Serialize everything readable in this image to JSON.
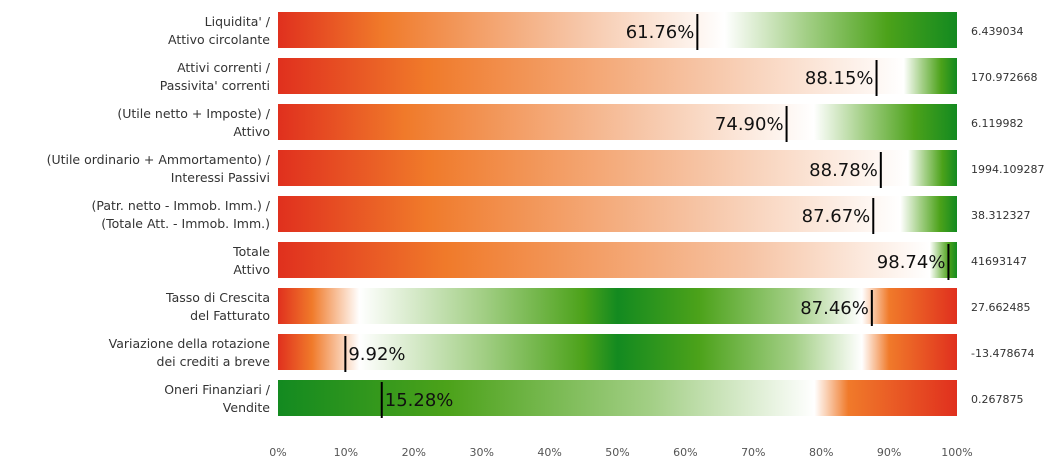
{
  "chart_data": {
    "type": "bar",
    "orientation": "horizontal",
    "xlim": [
      0,
      100
    ],
    "x_ticks": [
      "0%",
      "10%",
      "20%",
      "30%",
      "40%",
      "50%",
      "60%",
      "70%",
      "80%",
      "90%",
      "100%"
    ],
    "colors": {
      "red": "#e0301e",
      "orange": "#f07a2a",
      "white": "#ffffff",
      "light_green": "#a3cf86",
      "green": "#4ca21a",
      "dark_green": "#138a20"
    },
    "rows": [
      {
        "label_lines": [
          "Liquidita' /",
          "Attivo circolante"
        ],
        "percent": 61.76,
        "percent_label": "61.76%",
        "value": "6.439034",
        "gradient": "red-to-green"
      },
      {
        "label_lines": [
          "Attivi correnti /",
          "Passivita' correnti"
        ],
        "percent": 88.15,
        "percent_label": "88.15%",
        "value": "170.972668",
        "gradient": "red-to-green"
      },
      {
        "label_lines": [
          "(Utile netto + Imposte) /",
          "Attivo"
        ],
        "percent": 74.9,
        "percent_label": "74.90%",
        "value": "6.119982",
        "gradient": "red-to-green"
      },
      {
        "label_lines": [
          "(Utile ordinario + Ammortamento) /",
          "Interessi Passivi"
        ],
        "percent": 88.78,
        "percent_label": "88.78%",
        "value": "1994.109287",
        "gradient": "red-to-green"
      },
      {
        "label_lines": [
          "(Patr. netto - Immob. Imm.) /",
          "(Totale Att. - Immob. Imm.)"
        ],
        "percent": 87.67,
        "percent_label": "87.67%",
        "value": "38.312327",
        "gradient": "red-to-green"
      },
      {
        "label_lines": [
          "Totale",
          "Attivo"
        ],
        "percent": 98.74,
        "percent_label": "98.74%",
        "value": "41693147",
        "gradient": "red-to-green"
      },
      {
        "label_lines": [
          "Tasso di Crescita",
          "del Fatturato"
        ],
        "percent": 87.46,
        "percent_label": "87.46%",
        "value": "27.662485",
        "gradient": "red-green-red"
      },
      {
        "label_lines": [
          "Variazione della rotazione",
          "dei crediti a breve"
        ],
        "percent": 9.92,
        "percent_label": "9.92%",
        "value": "-13.478674",
        "gradient": "red-green-red"
      },
      {
        "label_lines": [
          "Oneri Finanziari /",
          "Vendite"
        ],
        "percent": 15.28,
        "percent_label": "15.28%",
        "value": "0.267875",
        "gradient": "green-to-red"
      }
    ]
  }
}
